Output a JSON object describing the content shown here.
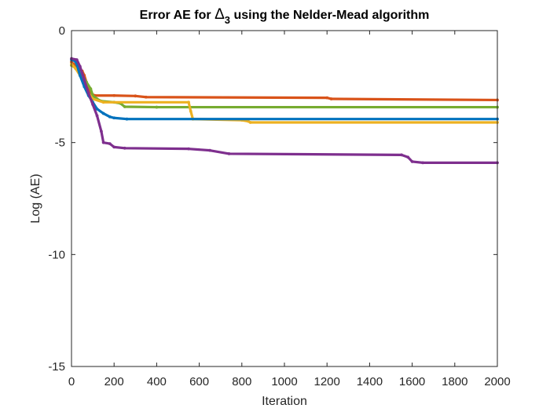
{
  "chart_data": {
    "type": "line",
    "title": {
      "before": "Error AE for ",
      "symbol": "Δ",
      "subscript": "3",
      "after": " using the Nelder-Mead algorithm"
    },
    "xlabel": "Iteration",
    "ylabel": "Log (AE)",
    "xlim": [
      0,
      2000
    ],
    "ylim": [
      -15,
      0
    ],
    "xticks": [
      0,
      200,
      400,
      600,
      800,
      1000,
      1200,
      1400,
      1600,
      1800,
      2000
    ],
    "yticks": [
      -15,
      -10,
      -5,
      0
    ],
    "grid": false,
    "legend": "none",
    "series": [
      {
        "color": "#D95319",
        "points": [
          [
            0,
            -1.4
          ],
          [
            10,
            -1.5
          ],
          [
            20,
            -1.6
          ],
          [
            30,
            -1.7
          ],
          [
            40,
            -1.75
          ],
          [
            50,
            -1.8
          ],
          [
            60,
            -2.0
          ],
          [
            70,
            -2.3
          ],
          [
            80,
            -2.6
          ],
          [
            90,
            -2.8
          ],
          [
            110,
            -2.9
          ],
          [
            200,
            -2.9
          ],
          [
            300,
            -2.92
          ],
          [
            350,
            -2.97
          ],
          [
            1200,
            -3.0
          ],
          [
            1220,
            -3.05
          ],
          [
            2000,
            -3.1
          ]
        ]
      },
      {
        "color": "#77AC30",
        "points": [
          [
            0,
            -1.55
          ],
          [
            10,
            -1.6
          ],
          [
            20,
            -1.7
          ],
          [
            30,
            -1.8
          ],
          [
            50,
            -2.0
          ],
          [
            70,
            -2.3
          ],
          [
            90,
            -2.6
          ],
          [
            100,
            -2.9
          ],
          [
            120,
            -3.05
          ],
          [
            140,
            -3.15
          ],
          [
            200,
            -3.2
          ],
          [
            230,
            -3.25
          ],
          [
            250,
            -3.4
          ],
          [
            400,
            -3.42
          ],
          [
            2000,
            -3.42
          ]
        ]
      },
      {
        "color": "#EDB120",
        "points": [
          [
            0,
            -1.5
          ],
          [
            20,
            -1.7
          ],
          [
            40,
            -2.0
          ],
          [
            60,
            -2.4
          ],
          [
            80,
            -2.8
          ],
          [
            100,
            -3.05
          ],
          [
            150,
            -3.2
          ],
          [
            550,
            -3.2
          ],
          [
            560,
            -3.6
          ],
          [
            570,
            -3.95
          ],
          [
            800,
            -4.0
          ],
          [
            830,
            -4.05
          ],
          [
            840,
            -4.1
          ],
          [
            2000,
            -4.1
          ]
        ]
      },
      {
        "color": "#0072BD",
        "points": [
          [
            0,
            -1.3
          ],
          [
            15,
            -1.35
          ],
          [
            25,
            -1.5
          ],
          [
            40,
            -2.0
          ],
          [
            60,
            -2.5
          ],
          [
            80,
            -2.9
          ],
          [
            100,
            -3.2
          ],
          [
            120,
            -3.5
          ],
          [
            150,
            -3.7
          ],
          [
            180,
            -3.85
          ],
          [
            200,
            -3.9
          ],
          [
            260,
            -3.95
          ],
          [
            2000,
            -3.95
          ]
        ]
      },
      {
        "color": "#7E2F8E",
        "points": [
          [
            0,
            -1.25
          ],
          [
            25,
            -1.3
          ],
          [
            40,
            -1.6
          ],
          [
            60,
            -2.2
          ],
          [
            80,
            -2.8
          ],
          [
            100,
            -3.3
          ],
          [
            120,
            -3.8
          ],
          [
            140,
            -4.5
          ],
          [
            150,
            -5.0
          ],
          [
            180,
            -5.05
          ],
          [
            200,
            -5.2
          ],
          [
            250,
            -5.25
          ],
          [
            550,
            -5.28
          ],
          [
            650,
            -5.35
          ],
          [
            740,
            -5.5
          ],
          [
            1550,
            -5.55
          ],
          [
            1580,
            -5.65
          ],
          [
            1600,
            -5.85
          ],
          [
            1650,
            -5.9
          ],
          [
            2000,
            -5.9
          ]
        ]
      }
    ]
  }
}
